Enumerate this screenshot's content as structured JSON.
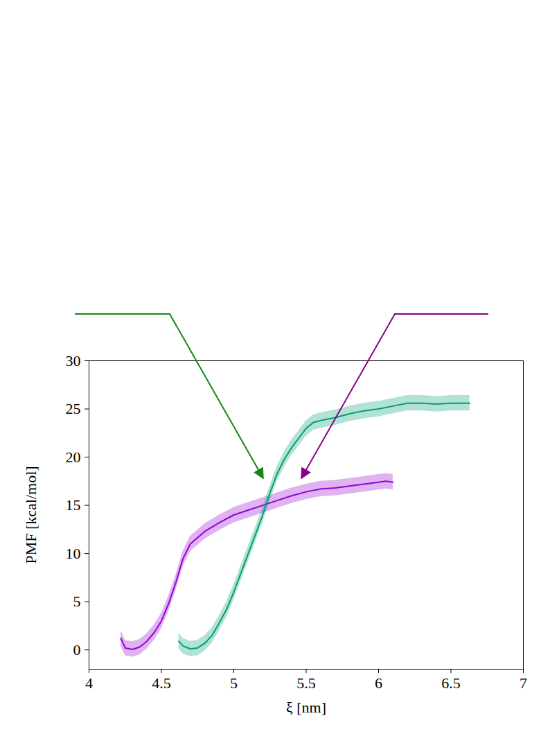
{
  "chart_data": {
    "type": "line",
    "x_label": "ξ [nm]",
    "y_label": "PMF [kcal/mol]",
    "xlim": [
      4,
      7
    ],
    "xticks": [
      4,
      4.5,
      5,
      5.5,
      6,
      6.5,
      7
    ],
    "ylim": [
      -2,
      30
    ],
    "yticks": [
      0,
      5,
      10,
      15,
      20,
      25,
      30
    ],
    "grid": false,
    "series": [
      {
        "color": "#9400d3",
        "x": [
          4.22,
          4.25,
          4.3,
          4.35,
          4.4,
          4.45,
          4.5,
          4.55,
          4.6,
          4.65,
          4.7,
          4.8,
          4.9,
          5.0,
          5.1,
          5.2,
          5.3,
          5.4,
          5.5,
          5.6,
          5.7,
          5.8,
          5.9,
          6.0,
          6.05,
          6.1
        ],
        "values": [
          1.2,
          0.2,
          0.05,
          0.3,
          0.9,
          1.8,
          3.0,
          4.8,
          7.0,
          9.5,
          11.0,
          12.3,
          13.2,
          14.0,
          14.5,
          15.0,
          15.5,
          16.0,
          16.4,
          16.7,
          16.8,
          17.0,
          17.2,
          17.4,
          17.5,
          17.4
        ],
        "errors": [
          0.8,
          0.8,
          0.8,
          0.8,
          0.8,
          0.8,
          0.8,
          0.8,
          0.8,
          0.8,
          0.8,
          0.8,
          0.8,
          0.8,
          0.8,
          0.8,
          0.8,
          0.8,
          0.8,
          0.8,
          0.8,
          0.8,
          0.8,
          0.8,
          0.8,
          0.8
        ]
      },
      {
        "color": "#009e73",
        "x": [
          4.62,
          4.65,
          4.7,
          4.75,
          4.8,
          4.85,
          4.9,
          4.95,
          5.0,
          5.05,
          5.1,
          5.15,
          5.2,
          5.25,
          5.3,
          5.35,
          5.4,
          5.45,
          5.5,
          5.55,
          5.6,
          5.7,
          5.8,
          5.9,
          6.0,
          6.1,
          6.2,
          6.3,
          6.4,
          6.5,
          6.6,
          6.63
        ],
        "values": [
          0.9,
          0.4,
          0.1,
          0.2,
          0.7,
          1.5,
          2.8,
          4.2,
          6.0,
          8.0,
          10.0,
          12.0,
          14.0,
          16.3,
          18.3,
          19.8,
          21.0,
          22.0,
          23.0,
          23.6,
          23.8,
          24.1,
          24.5,
          24.8,
          25.0,
          25.3,
          25.6,
          25.6,
          25.5,
          25.6,
          25.6,
          25.6
        ],
        "errors": [
          0.8,
          0.8,
          0.8,
          0.8,
          0.8,
          0.8,
          0.8,
          0.8,
          0.8,
          0.8,
          0.8,
          0.8,
          0.8,
          0.8,
          0.8,
          0.8,
          0.8,
          0.8,
          0.8,
          0.8,
          0.8,
          0.8,
          0.8,
          0.8,
          0.8,
          0.8,
          0.8,
          0.8,
          0.8,
          0.8,
          0.8,
          0.8
        ]
      }
    ]
  }
}
